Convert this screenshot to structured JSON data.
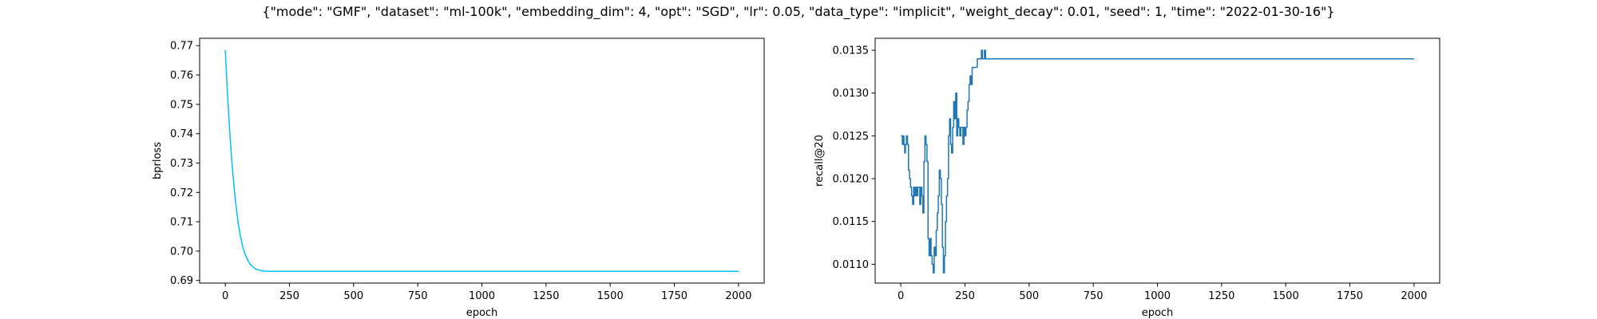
{
  "figure": {
    "suptitle": "{\"mode\": \"GMF\", \"dataset\": \"ml-100k\", \"embedding_dim\": 4, \"opt\": \"SGD\", \"lr\": 0.05, \"data_type\": \"implicit\", \"weight_decay\": 0.01, \"seed\": 1, \"time\": \"2022-01-30-16\"}"
  },
  "chart_data": [
    {
      "type": "line",
      "title": "",
      "xlabel": "epoch",
      "ylabel": "bprloss",
      "xlim": [
        -100,
        2100
      ],
      "ylim": [
        0.6891,
        0.7725
      ],
      "xticks": [
        0,
        250,
        500,
        750,
        1000,
        1250,
        1500,
        1750,
        2000
      ],
      "yticks": [
        0.69,
        0.7,
        0.71,
        0.72,
        0.73,
        0.74,
        0.75,
        0.76,
        0.77
      ],
      "ytick_labels": [
        "0.69",
        "0.70",
        "0.71",
        "0.72",
        "0.73",
        "0.74",
        "0.75",
        "0.76",
        "0.77"
      ],
      "grid": false,
      "color": "#00bfff",
      "series": [
        {
          "x": [
            0,
            5,
            10,
            15,
            20,
            25,
            30,
            40,
            50,
            60,
            70,
            80,
            90,
            100,
            115,
            130,
            150,
            175,
            200,
            300,
            500,
            750,
            1000,
            1250,
            1500,
            1750,
            2000
          ],
          "values": [
            0.7685,
            0.7595,
            0.7513,
            0.7439,
            0.7372,
            0.7312,
            0.7259,
            0.7167,
            0.7096,
            0.7046,
            0.7008,
            0.6983,
            0.6965,
            0.6952,
            0.6941,
            0.6935,
            0.6932,
            0.6931,
            0.6931,
            0.6931,
            0.6931,
            0.6931,
            0.6931,
            0.6931,
            0.6931,
            0.6931,
            0.6931
          ]
        }
      ]
    },
    {
      "type": "line",
      "title": "",
      "xlabel": "epoch",
      "ylabel": "recall@20",
      "xlim": [
        -100,
        2100
      ],
      "ylim": [
        0.01078,
        0.01364
      ],
      "xticks": [
        0,
        250,
        500,
        750,
        1000,
        1250,
        1500,
        1750,
        2000
      ],
      "yticks": [
        0.011,
        0.0115,
        0.012,
        0.0125,
        0.013,
        0.0135
      ],
      "ytick_labels": [
        "0.0110",
        "0.0115",
        "0.0120",
        "0.0125",
        "0.0130",
        "0.0135"
      ],
      "grid": false,
      "color": "#1f77b4",
      "series": [
        {
          "x": [
            0,
            6,
            9,
            12,
            15,
            18,
            22,
            26,
            30,
            34,
            38,
            42,
            46,
            50,
            54,
            58,
            62,
            66,
            70,
            74,
            78,
            82,
            86,
            90,
            94,
            98,
            102,
            106,
            110,
            114,
            118,
            122,
            126,
            130,
            134,
            138,
            142,
            146,
            150,
            154,
            158,
            162,
            166,
            170,
            174,
            178,
            182,
            186,
            190,
            194,
            198,
            202,
            206,
            210,
            214,
            218,
            222,
            226,
            230,
            234,
            238,
            242,
            246,
            250,
            254,
            258,
            262,
            266,
            270,
            274,
            278,
            282,
            286,
            290,
            294,
            298,
            302,
            306,
            310,
            314,
            318,
            322,
            326,
            330,
            2000
          ],
          "values": [
            0.0125,
            0.0124,
            0.0125,
            0.0124,
            0.0123,
            0.0124,
            0.0125,
            0.0124,
            0.0121,
            0.012,
            0.0119,
            0.0118,
            0.0117,
            0.0119,
            0.0118,
            0.0119,
            0.0118,
            0.0119,
            0.0119,
            0.0117,
            0.0119,
            0.0118,
            0.0116,
            0.0122,
            0.0125,
            0.0124,
            0.0122,
            0.0113,
            0.0111,
            0.0113,
            0.0111,
            0.011,
            0.0109,
            0.0112,
            0.0111,
            0.0114,
            0.0116,
            0.0118,
            0.0121,
            0.012,
            0.0117,
            0.0112,
            0.0109,
            0.0111,
            0.0115,
            0.0118,
            0.012,
            0.0125,
            0.0127,
            0.0124,
            0.0123,
            0.0126,
            0.0129,
            0.0127,
            0.013,
            0.0125,
            0.0127,
            0.0126,
            0.0125,
            0.0126,
            0.0126,
            0.0124,
            0.0126,
            0.0125,
            0.0126,
            0.0128,
            0.0129,
            0.0131,
            0.0132,
            0.0131,
            0.0133,
            0.0133,
            0.0133,
            0.0133,
            0.0133,
            0.0134,
            0.0134,
            0.0134,
            0.0134,
            0.0135,
            0.0134,
            0.0134,
            0.0135,
            0.0134,
            0.0134
          ]
        }
      ]
    }
  ]
}
